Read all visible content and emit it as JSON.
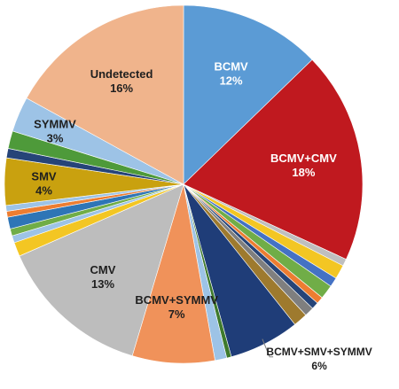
{
  "chart_data": {
    "type": "pie",
    "title": "",
    "slices": [
      {
        "label": "BCMV",
        "value": 12,
        "color": "#5b9bd5",
        "text_color": "#ffffff"
      },
      {
        "label": "BCMV+CMV",
        "value": 18,
        "color": "#c0191f",
        "text_color": "#ffffff"
      },
      {
        "label": "",
        "value": 0.6,
        "color": "#bfbfbf"
      },
      {
        "label": "",
        "value": 1.2,
        "color": "#f3c623"
      },
      {
        "label": "",
        "value": 0.8,
        "color": "#4472c4"
      },
      {
        "label": "",
        "value": 1.2,
        "color": "#70ad47"
      },
      {
        "label": "",
        "value": 0.6,
        "color": "#ed7d31"
      },
      {
        "label": "",
        "value": 0.6,
        "color": "#264478"
      },
      {
        "label": "",
        "value": 0.8,
        "color": "#7f7f7f"
      },
      {
        "label": "",
        "value": 1.2,
        "color": "#9e7a2e"
      },
      {
        "label": "BCMV+SMV+SYMMV",
        "value": 6,
        "color": "#1f3d78",
        "text_color": "#1f1f1f",
        "outside": true
      },
      {
        "label": "",
        "value": 0.4,
        "color": "#3e7a2c"
      },
      {
        "label": "",
        "value": 1.0,
        "color": "#9dc3e6"
      },
      {
        "label": "BCMV+SYMMV",
        "value": 7,
        "color": "#f0925a",
        "text_color": "#1f1f1f"
      },
      {
        "label": "CMV",
        "value": 13,
        "color": "#bdbdbd",
        "text_color": "#1f1f1f"
      },
      {
        "label": "",
        "value": 1.2,
        "color": "#f3c623"
      },
      {
        "label": "",
        "value": 0.6,
        "color": "#9dc3e6"
      },
      {
        "label": "",
        "value": 0.6,
        "color": "#70ad47"
      },
      {
        "label": "",
        "value": 1.0,
        "color": "#2e75b6"
      },
      {
        "label": "",
        "value": 0.5,
        "color": "#ed7d31"
      },
      {
        "label": "",
        "value": 0.5,
        "color": "#9dc3e6"
      },
      {
        "label": "SMV",
        "value": 4,
        "color": "#c9a10f",
        "text_color": "#1f1f1f"
      },
      {
        "label": "",
        "value": 0.8,
        "color": "#264478"
      },
      {
        "label": "",
        "value": 1.5,
        "color": "#4e9a3a"
      },
      {
        "label": "SYMMV",
        "value": 3,
        "color": "#9dc3e6",
        "text_color": "#1f1f1f"
      },
      {
        "label": "Undetected",
        "value": 16,
        "color": "#f0b48c",
        "text_color": "#1f1f1f"
      }
    ]
  }
}
